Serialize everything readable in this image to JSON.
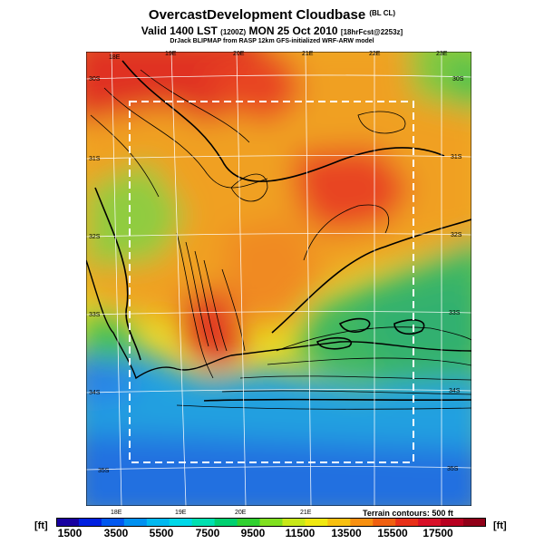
{
  "title": {
    "main": "OvercastDevelopment Cloudbase",
    "main_suffix": "(BL CL)",
    "valid_prefix": "Valid 1400 LST",
    "valid_utc": "(1200Z)",
    "valid_date": "MON 25 Oct 2010",
    "valid_suffix": "[18hrFcst@2253z]",
    "source": "DrJack BLIPMAP from RASP 12km GFS-initialized WRF-ARW model"
  },
  "map": {
    "lon_top": [
      "18E",
      "19E",
      "20E",
      "21E",
      "22E",
      "23E"
    ],
    "lon_bottom": [
      "18E",
      "19E",
      "20E",
      "21E"
    ],
    "lat_left": [
      "30S",
      "31S",
      "32S",
      "33S",
      "34S",
      "35S"
    ],
    "lat_right": [
      "30S",
      "31S",
      "32S",
      "33S",
      "34S",
      "35S"
    ],
    "terrain_note": "Terrain contours: 500 ft",
    "colors": {
      "high": "#e03020",
      "mid_high": "#f08a20",
      "mid": "#e8d820",
      "mid_low": "#40c050",
      "low": "#20a0e0",
      "lowest": "#2060e0"
    }
  },
  "colorbar": {
    "unit_left": "[ft]",
    "unit_right": "[ft]",
    "labels": [
      "1500",
      "3500",
      "5500",
      "7500",
      "9500",
      "11500",
      "13500",
      "15500",
      "17500"
    ],
    "colors": [
      "#1800a0",
      "#0020e0",
      "#0058f0",
      "#0090f0",
      "#00b8f0",
      "#00d8e8",
      "#00e0b0",
      "#00d070",
      "#30d030",
      "#80e020",
      "#c8e818",
      "#f0e810",
      "#f8c010",
      "#f89010",
      "#f06010",
      "#e83018",
      "#d81028",
      "#b80020",
      "#900018"
    ]
  }
}
